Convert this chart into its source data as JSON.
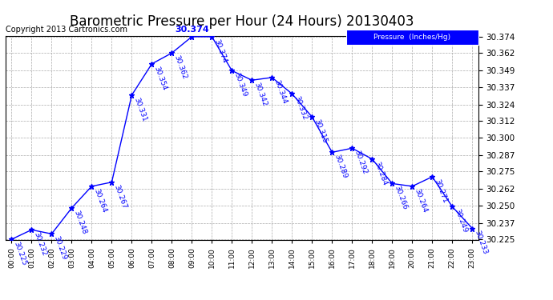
{
  "title": "Barometric Pressure per Hour (24 Hours) 20130403",
  "copyright": "Copyright 2013 Cartronics.com",
  "legend_label": "Pressure  (Inches/Hg)",
  "hours": [
    "00:00",
    "01:00",
    "02:00",
    "03:00",
    "04:00",
    "05:00",
    "06:00",
    "07:00",
    "08:00",
    "09:00",
    "10:00",
    "11:00",
    "12:00",
    "13:00",
    "14:00",
    "15:00",
    "16:00",
    "17:00",
    "18:00",
    "19:00",
    "20:00",
    "21:00",
    "22:00",
    "23:00"
  ],
  "values": [
    30.225,
    30.232,
    30.229,
    30.248,
    30.264,
    30.267,
    30.331,
    30.354,
    30.362,
    30.374,
    30.374,
    30.349,
    30.342,
    30.344,
    30.332,
    30.315,
    30.289,
    30.292,
    30.284,
    30.266,
    30.264,
    30.271,
    30.249,
    30.233
  ],
  "ylim_min": 30.225,
  "ylim_max": 30.374,
  "yticks": [
    30.225,
    30.237,
    30.25,
    30.262,
    30.275,
    30.287,
    30.3,
    30.312,
    30.324,
    30.337,
    30.349,
    30.362,
    30.374
  ],
  "line_color": "blue",
  "marker": "*",
  "marker_color": "blue",
  "marker_size": 5,
  "label_fontsize": 6.5,
  "label_color": "blue",
  "label_rotation": -70,
  "background_color": "white",
  "grid_color": "#aaaaaa",
  "title_fontsize": 12,
  "copyright_fontsize": 7,
  "legend_bg": "blue",
  "legend_text_color": "white",
  "peak_label_idx": 9,
  "peak_label_value": "30.374"
}
